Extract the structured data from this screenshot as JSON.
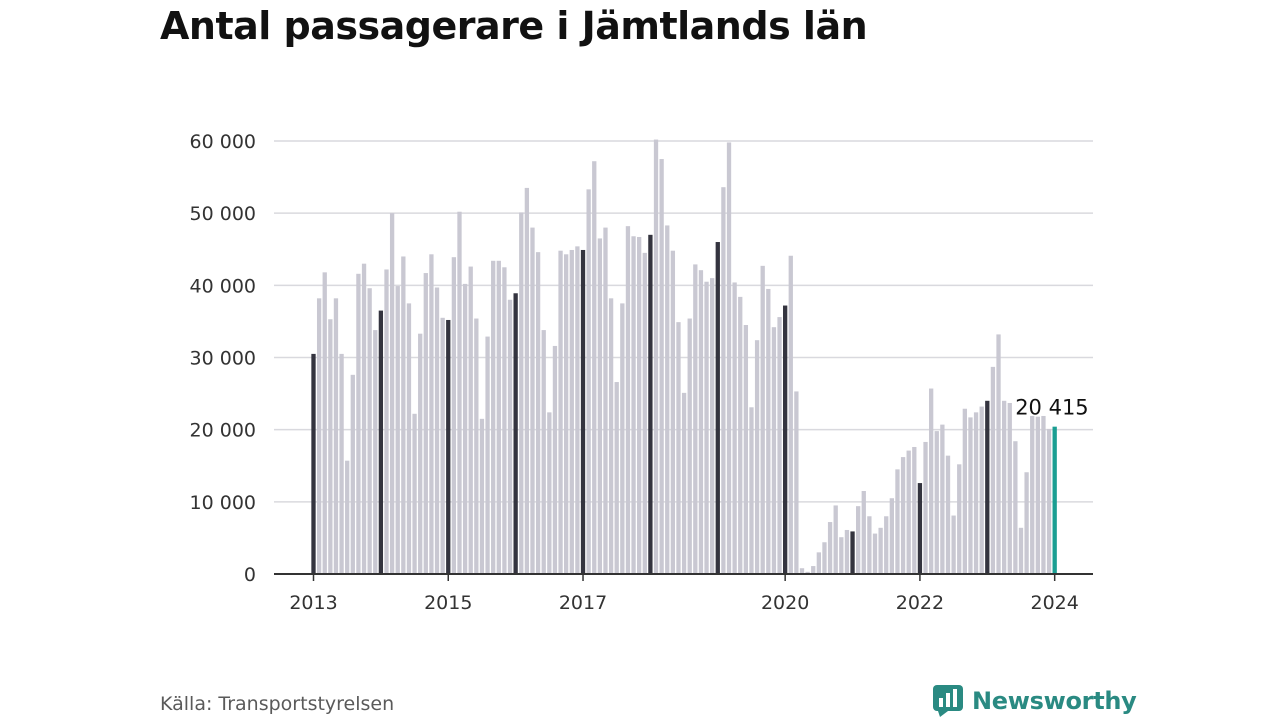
{
  "title": "Antal passagerare i Jämtlands län",
  "source": "Källa: Transportstyrelsen",
  "brand": {
    "name": "Newsworthy",
    "icon": "newsworthy-logo-icon",
    "color": "#2a8a82"
  },
  "colors": {
    "bar": "#c9c8d2",
    "bar_january": "#34343f",
    "bar_latest": "#1a9e92",
    "grid": "#d9d9de",
    "axis": "#333333"
  },
  "chart_data": {
    "type": "bar",
    "title": "Antal passagerare i Jämtlands län",
    "xlabel": "",
    "ylabel": "",
    "ylim": [
      0,
      60000
    ],
    "yticks": [
      0,
      10000,
      20000,
      30000,
      40000,
      50000,
      60000
    ],
    "ytick_labels": [
      "0",
      "10 000",
      "20 000",
      "30 000",
      "40 000",
      "50 000",
      "60 000"
    ],
    "x_start": "2013-01",
    "x_end": "2024-01",
    "xtick_labels": [
      "2013",
      "2015",
      "2017",
      "2020",
      "2022",
      "2024"
    ],
    "xtick_dates": [
      "2013-01",
      "2015-01",
      "2017-01",
      "2020-01",
      "2022-01",
      "2024-01"
    ],
    "highlight": "January bars dark; latest month highlighted",
    "annotation": {
      "date": "2024-01",
      "text": "20 415"
    },
    "values": [
      30500,
      38200,
      41800,
      35300,
      38200,
      30500,
      15700,
      27600,
      41600,
      43000,
      39600,
      33800,
      36500,
      42200,
      50000,
      39900,
      44000,
      37500,
      22200,
      33300,
      41700,
      44300,
      39700,
      35500,
      35200,
      43900,
      50200,
      40200,
      42600,
      35400,
      21500,
      32900,
      43400,
      43400,
      42500,
      38000,
      38900,
      50100,
      53500,
      48000,
      44600,
      33800,
      22400,
      31600,
      44800,
      44300,
      44900,
      45400,
      44900,
      53300,
      57200,
      46500,
      48000,
      38200,
      26600,
      37500,
      48200,
      46800,
      46700,
      44500,
      47000,
      60200,
      57500,
      48300,
      44800,
      34900,
      25100,
      35400,
      42900,
      42100,
      40500,
      41000,
      46000,
      53600,
      59800,
      40400,
      38400,
      34500,
      23100,
      32400,
      42700,
      39500,
      34200,
      35600,
      37200,
      44100,
      25300,
      800,
      300,
      1100,
      3000,
      4400,
      7200,
      9500,
      5100,
      6100,
      5900,
      9400,
      11500,
      8000,
      5600,
      6400,
      8000,
      10500,
      14500,
      16200,
      17100,
      17600,
      12600,
      18300,
      25700,
      19800,
      20700,
      16400,
      8100,
      15200,
      22900,
      21700,
      22400,
      23200,
      24000,
      28700,
      33200,
      24000,
      23700,
      18400,
      6400,
      14100,
      21900,
      21800,
      21900,
      20100,
      20415
    ]
  }
}
